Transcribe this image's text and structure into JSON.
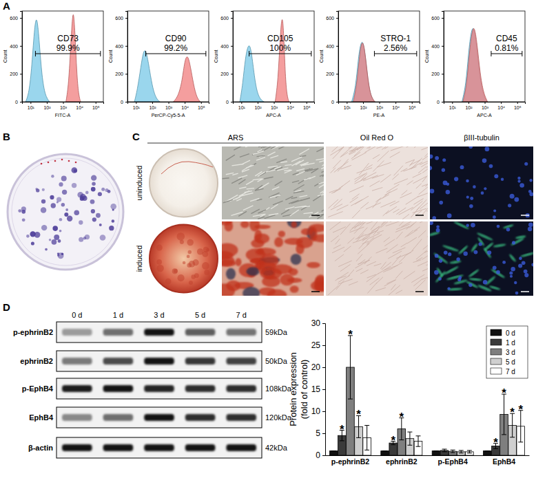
{
  "chart_data": [
    {
      "type": "area",
      "title": "CD73",
      "gate_label": "99.9%",
      "gate": [
        20,
        200000
      ],
      "x_label": "FITC-A",
      "y_label": "Count",
      "log": "x",
      "xlim": [
        3,
        300000
      ],
      "xticks": [
        {
          "value": 10,
          "label": "10¹"
        },
        {
          "value": 100,
          "label": "10²"
        },
        {
          "value": 1000,
          "label": "10³"
        },
        {
          "value": 10000,
          "label": "10⁴"
        },
        {
          "value": 100000,
          "label": "10⁵"
        }
      ],
      "ylim": [
        0,
        650
      ],
      "yticks": [
        0,
        200,
        400,
        600
      ],
      "series": [
        {
          "color": "#73c6e6",
          "x": [
            5,
            8,
            12,
            18,
            25,
            35,
            50,
            80,
            150
          ],
          "values": [
            0,
            60,
            250,
            560,
            620,
            420,
            180,
            40,
            0
          ]
        },
        {
          "color": "#f07878",
          "x": [
            1500,
            2200,
            3000,
            3800,
            4500,
            5500,
            7000,
            9000,
            12000
          ],
          "values": [
            0,
            120,
            420,
            620,
            640,
            480,
            200,
            50,
            0
          ]
        }
      ]
    },
    {
      "type": "area",
      "title": "CD90",
      "gate_label": "99.2%",
      "gate": [
        40,
        200000
      ],
      "x_label": "PerCP-Cy5-5-A",
      "y_label": "Count",
      "log": "x",
      "xlim": [
        3,
        300000
      ],
      "xticks": [
        {
          "value": 10,
          "label": "10¹"
        },
        {
          "value": 100,
          "label": "10²"
        },
        {
          "value": 1000,
          "label": "10³"
        },
        {
          "value": 10000,
          "label": "10⁴"
        },
        {
          "value": 100000,
          "label": "10⁵"
        }
      ],
      "ylim": [
        0,
        650
      ],
      "yticks": [
        0,
        200,
        400,
        600
      ],
      "series": [
        {
          "color": "#73c6e6",
          "x": [
            8,
            12,
            20,
            30,
            45,
            70,
            110,
            180,
            300
          ],
          "values": [
            0,
            80,
            250,
            380,
            360,
            220,
            90,
            20,
            0
          ]
        },
        {
          "color": "#f07878",
          "x": [
            2000,
            4000,
            7000,
            10000,
            15000,
            22000,
            35000,
            55000,
            90000
          ],
          "values": [
            0,
            40,
            150,
            300,
            340,
            260,
            120,
            30,
            0
          ]
        }
      ]
    },
    {
      "type": "area",
      "title": "CD105",
      "gate_label": "100%",
      "gate": [
        30,
        200000
      ],
      "x_label": "APC-A",
      "y_label": "Count",
      "log": "x",
      "xlim": [
        3,
        300000
      ],
      "xticks": [
        {
          "value": 10,
          "label": "10¹"
        },
        {
          "value": 100,
          "label": "10²"
        },
        {
          "value": 1000,
          "label": "10³"
        },
        {
          "value": 10000,
          "label": "10⁴"
        },
        {
          "value": 100000,
          "label": "10⁵"
        }
      ],
      "ylim": [
        0,
        650
      ],
      "yticks": [
        0,
        200,
        400,
        600
      ],
      "series": [
        {
          "color": "#73c6e6",
          "x": [
            8,
            12,
            18,
            28,
            40,
            60,
            90,
            150,
            250
          ],
          "values": [
            0,
            120,
            330,
            420,
            380,
            200,
            70,
            15,
            0
          ]
        },
        {
          "color": "#f07878",
          "x": [
            1200,
            1800,
            2400,
            3000,
            3600,
            4300,
            5200,
            6500,
            8500
          ],
          "values": [
            0,
            150,
            450,
            600,
            590,
            400,
            160,
            40,
            0
          ]
        }
      ]
    },
    {
      "type": "area",
      "title": "STRO-1",
      "gate_label": "2.56%",
      "gate": [
        500,
        200000
      ],
      "x_label": "PE-A",
      "y_label": "Count",
      "log": "x",
      "xlim": [
        3,
        300000
      ],
      "xticks": [
        {
          "value": 10,
          "label": "10¹"
        },
        {
          "value": 100,
          "label": "10²"
        },
        {
          "value": 1000,
          "label": "10³"
        },
        {
          "value": 10000,
          "label": "10⁴"
        },
        {
          "value": 100000,
          "label": "10⁵"
        }
      ],
      "ylim": [
        0,
        650
      ],
      "yticks": [
        0,
        200,
        400,
        600
      ],
      "series": [
        {
          "color": "#73c6e6",
          "x": [
            20,
            35,
            50,
            70,
            100,
            140,
            200,
            300,
            500
          ],
          "values": [
            0,
            100,
            300,
            420,
            440,
            330,
            150,
            40,
            0
          ]
        },
        {
          "color": "#f07878",
          "x": [
            25,
            40,
            60,
            80,
            110,
            150,
            220,
            330,
            550
          ],
          "values": [
            0,
            110,
            320,
            430,
            420,
            300,
            120,
            30,
            0
          ]
        }
      ]
    },
    {
      "type": "area",
      "title": "CD45",
      "gate_label": "0.81%",
      "gate": [
        2500,
        200000
      ],
      "x_label": "APC-A",
      "y_label": "Count",
      "log": "x",
      "xlim": [
        3,
        300000
      ],
      "xticks": [
        {
          "value": 10,
          "label": "10¹"
        },
        {
          "value": 100,
          "label": "10²"
        },
        {
          "value": 1000,
          "label": "10³"
        },
        {
          "value": 10000,
          "label": "10⁴"
        },
        {
          "value": 100000,
          "label": "10⁵"
        }
      ],
      "ylim": [
        0,
        650
      ],
      "yticks": [
        0,
        200,
        400,
        600
      ],
      "series": [
        {
          "color": "#73c6e6",
          "x": [
            40,
            70,
            100,
            150,
            220,
            320,
            500,
            800,
            1400
          ],
          "values": [
            0,
            120,
            350,
            520,
            540,
            400,
            180,
            50,
            0
          ]
        },
        {
          "color": "#f07878",
          "x": [
            45,
            75,
            110,
            160,
            230,
            340,
            520,
            850,
            1500
          ],
          "values": [
            0,
            100,
            330,
            500,
            550,
            420,
            200,
            60,
            0
          ]
        }
      ]
    },
    {
      "type": "bar",
      "categories": [
        "p-ephrinB2",
        "ephrinB2",
        "p-EphB4",
        "EphB4"
      ],
      "y_label": [
        "Protein expression",
        "(fold of control)"
      ],
      "ylim": [
        0,
        30
      ],
      "yticks": [
        0,
        5,
        10,
        15,
        20,
        25,
        30
      ],
      "legend": "top-right",
      "series": [
        {
          "name": "0 d",
          "color": "#111111",
          "values": [
            1,
            1,
            1,
            1
          ],
          "error": [
            0,
            0,
            0,
            0
          ]
        },
        {
          "name": "1 d",
          "color": "#3a3a3a",
          "values": [
            4.5,
            2.8,
            1.1,
            2.1
          ],
          "error": [
            1.2,
            0.4,
            0.3,
            0.6
          ]
        },
        {
          "name": "3 d",
          "color": "#7f7f7f",
          "values": [
            20,
            6,
            0.9,
            9.3
          ],
          "error": [
            7.2,
            2.5,
            0.3,
            4.6
          ]
        },
        {
          "name": "5 d",
          "color": "#cfcfcf",
          "values": [
            6.5,
            3.8,
            0.8,
            6.8
          ],
          "error": [
            2.5,
            1.5,
            0.3,
            2.7
          ]
        },
        {
          "name": "7 d",
          "color": "#ffffff",
          "values": [
            4,
            3.2,
            0.8,
            6.6
          ],
          "error": [
            2.8,
            1.2,
            0.3,
            3.6
          ]
        }
      ],
      "annotations": [
        {
          "text": "*",
          "series": 1,
          "category": 0
        },
        {
          "text": "*",
          "series": 2,
          "category": 0
        },
        {
          "text": "*",
          "series": 3,
          "category": 0
        },
        {
          "text": "*",
          "series": 1,
          "category": 1
        },
        {
          "text": "*",
          "series": 2,
          "category": 1
        },
        {
          "text": "*",
          "series": 1,
          "category": 3
        },
        {
          "text": "*",
          "series": 2,
          "category": 3
        },
        {
          "text": "*",
          "series": 3,
          "category": 3
        },
        {
          "text": "*",
          "series": 4,
          "category": 3
        }
      ]
    }
  ],
  "panels": [
    "A",
    "B",
    "C",
    "D"
  ],
  "stains": {
    "columns": [
      "ARS",
      "Oil Red O",
      "βIII-tubulin"
    ],
    "rows": [
      "uninduced",
      "induced"
    ]
  },
  "blot": {
    "lanes": [
      "0 d",
      "1 d",
      "3 d",
      "5 d",
      "7 d"
    ],
    "rows": [
      {
        "label": "p-ephrinB2",
        "size": "59kDa"
      },
      {
        "label": "ephrinB2",
        "size": "50kDa"
      },
      {
        "label": "p-EphB4",
        "size": "108kDa"
      },
      {
        "label": "EphB4",
        "size": "120kDa"
      },
      {
        "label": "β-actin",
        "size": "42kDa"
      }
    ]
  }
}
